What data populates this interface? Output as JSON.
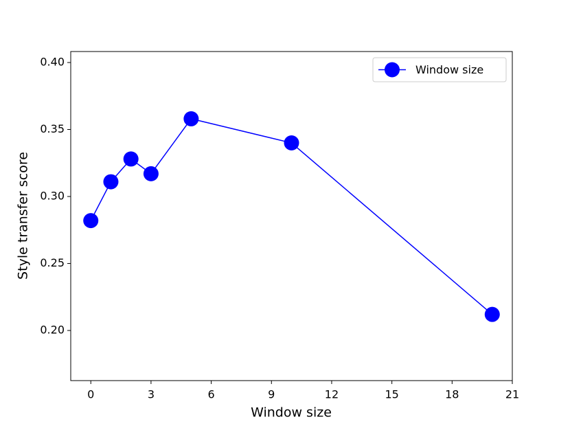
{
  "chart_data": {
    "type": "line",
    "x_label": "Window size",
    "y_label": "Style transfer score",
    "x": [
      0,
      1,
      2,
      3,
      5,
      10,
      20
    ],
    "series": [
      {
        "name": "Window size",
        "color": "#0000ff",
        "values": [
          0.282,
          0.311,
          0.328,
          0.317,
          0.358,
          0.34,
          0.212
        ]
      }
    ],
    "xlim": [
      -1,
      21
    ],
    "xticks": [
      0,
      3,
      6,
      9,
      12,
      15,
      18,
      21
    ],
    "ylim": [
      0.1626,
      0.4082
    ],
    "yticks": [
      {
        "value": 0.2,
        "label": "0.20"
      },
      0.25,
      {
        "value": 0.3,
        "label": "0.30"
      },
      0.35,
      {
        "value": 0.4,
        "label": "0.40"
      }
    ],
    "grid": false,
    "legend": "upper right"
  }
}
